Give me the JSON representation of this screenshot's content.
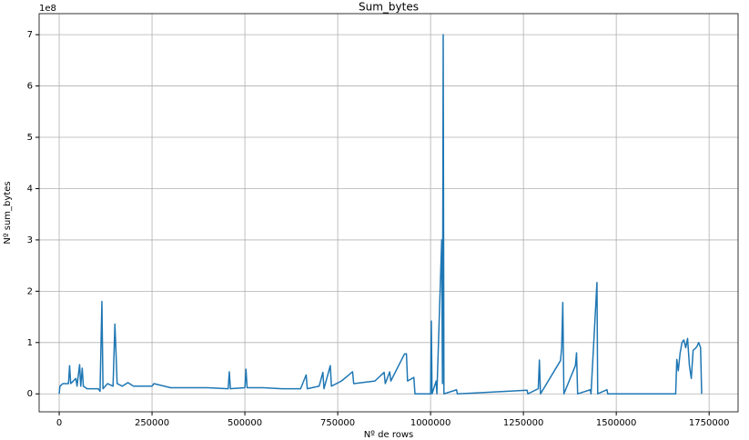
{
  "chart_data": {
    "type": "line",
    "title": "Sum_bytes",
    "xlabel": "Nº de rows",
    "ylabel": "Nº sum_bytes",
    "y_offset_label": "1e8",
    "grid": true,
    "xlim": [
      -54000,
      1828000
    ],
    "ylim": [
      -0.35,
      7.41
    ],
    "xticks": [
      0,
      250000,
      500000,
      750000,
      1000000,
      1250000,
      1500000,
      1750000
    ],
    "yticks": [
      0,
      1,
      2,
      3,
      4,
      5,
      6,
      7
    ],
    "x": [
      0,
      2000,
      10000,
      25000,
      28000,
      31000,
      45000,
      48000,
      55000,
      58000,
      62000,
      65000,
      75000,
      105000,
      110000,
      115000,
      118000,
      130000,
      145000,
      150000,
      153000,
      156000,
      170000,
      185000,
      200000,
      250000,
      255000,
      300000,
      350000,
      400000,
      455000,
      458000,
      461000,
      500000,
      503000,
      506000,
      550000,
      600000,
      650000,
      665000,
      668000,
      700000,
      710000,
      713000,
      730000,
      733000,
      760000,
      790000,
      793000,
      850000,
      875000,
      878000,
      890000,
      893000,
      930000,
      935000,
      938000,
      955000,
      958000,
      1000000,
      1002000,
      1004000,
      1015000,
      1017000,
      1030000,
      1032000,
      1034000,
      1036000,
      1070000,
      1072000,
      1260000,
      1262000,
      1290000,
      1293000,
      1296000,
      1350000,
      1353000,
      1356000,
      1359000,
      1390000,
      1393000,
      1396000,
      1430000,
      1432000,
      1448000,
      1450000,
      1475000,
      1477000,
      1660000,
      1663000,
      1667000,
      1672000,
      1677000,
      1682000,
      1687000,
      1692000,
      1697000,
      1702000,
      1707000,
      1712000,
      1717000,
      1722000,
      1727000,
      1730000
    ],
    "series": [
      {
        "name": "sum_bytes",
        "color": "#1f77b4",
        "values": [
          0,
          0.15,
          0.2,
          0.2,
          0.55,
          0.2,
          0.3,
          0.15,
          0.57,
          0.15,
          0.5,
          0.15,
          0.1,
          0.1,
          0.05,
          1.8,
          0.1,
          0.2,
          0.15,
          1.36,
          0.8,
          0.2,
          0.15,
          0.22,
          0.15,
          0.15,
          0.2,
          0.12,
          0.12,
          0.12,
          0.1,
          0.43,
          0.1,
          0.12,
          0.48,
          0.12,
          0.12,
          0.1,
          0.1,
          0.37,
          0.1,
          0.15,
          0.42,
          0.1,
          0.55,
          0.15,
          0.25,
          0.43,
          0.2,
          0.25,
          0.42,
          0.2,
          0.43,
          0.25,
          0.78,
          0.78,
          0.25,
          0.32,
          0,
          0,
          1.42,
          0,
          0.25,
          0,
          3.0,
          0.2,
          7.0,
          0,
          0.08,
          0,
          0.07,
          0,
          0.1,
          0.66,
          0,
          0.65,
          0.9,
          1.78,
          0,
          0.55,
          0.8,
          0,
          0.08,
          0,
          2.17,
          0,
          0.08,
          0,
          0,
          0.67,
          0.45,
          0.8,
          1.0,
          1.05,
          0.9,
          1.08,
          0.55,
          0.3,
          0.85,
          0.88,
          0.92,
          1.0,
          0.9,
          0
        ]
      }
    ]
  }
}
